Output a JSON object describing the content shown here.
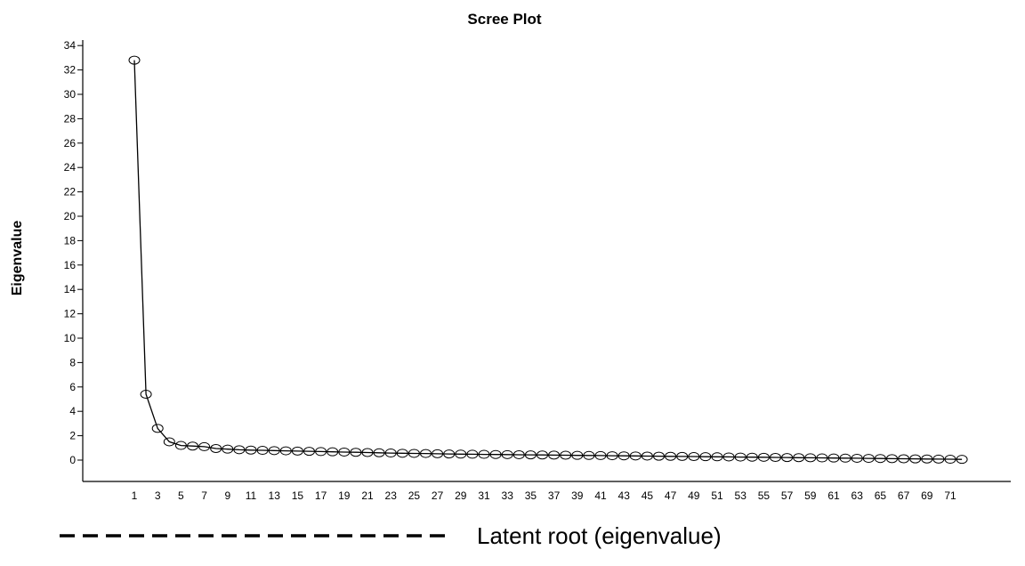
{
  "chart_data": {
    "type": "line",
    "title": "Scree Plot",
    "xlabel": "",
    "ylabel": "Eigenvalue",
    "x": [
      1,
      2,
      3,
      4,
      5,
      6,
      7,
      8,
      9,
      10,
      11,
      12,
      13,
      14,
      15,
      16,
      17,
      18,
      19,
      20,
      21,
      22,
      23,
      24,
      25,
      26,
      27,
      28,
      29,
      30,
      31,
      32,
      33,
      34,
      35,
      36,
      37,
      38,
      39,
      40,
      41,
      42,
      43,
      44,
      45,
      46,
      47,
      48,
      49,
      50,
      51,
      52,
      53,
      54,
      55,
      56,
      57,
      58,
      59,
      60,
      61,
      62,
      63,
      64,
      65,
      66,
      67,
      68,
      69,
      70,
      71,
      72
    ],
    "series": [
      {
        "values": [
          32.8,
          5.4,
          2.6,
          1.5,
          1.2,
          1.15,
          1.1,
          0.95,
          0.9,
          0.85,
          0.82,
          0.8,
          0.78,
          0.76,
          0.74,
          0.72,
          0.7,
          0.68,
          0.66,
          0.64,
          0.62,
          0.6,
          0.58,
          0.56,
          0.55,
          0.54,
          0.52,
          0.5,
          0.49,
          0.48,
          0.47,
          0.46,
          0.45,
          0.44,
          0.43,
          0.42,
          0.41,
          0.4,
          0.39,
          0.38,
          0.37,
          0.36,
          0.35,
          0.34,
          0.33,
          0.32,
          0.31,
          0.3,
          0.29,
          0.28,
          0.27,
          0.26,
          0.25,
          0.24,
          0.23,
          0.22,
          0.21,
          0.2,
          0.19,
          0.18,
          0.17,
          0.16,
          0.15,
          0.14,
          0.13,
          0.12,
          0.11,
          0.1,
          0.09,
          0.08,
          0.07,
          0.06
        ]
      }
    ],
    "xtick_labels": [
      1,
      3,
      5,
      7,
      9,
      11,
      13,
      15,
      17,
      19,
      21,
      23,
      25,
      27,
      29,
      31,
      33,
      35,
      37,
      39,
      41,
      43,
      45,
      47,
      49,
      51,
      53,
      55,
      57,
      59,
      61,
      63,
      65,
      67,
      69,
      71
    ],
    "yticks": [
      0,
      2,
      4,
      6,
      8,
      10,
      12,
      14,
      16,
      18,
      20,
      22,
      24,
      26,
      28,
      30,
      32,
      34
    ],
    "ylim": [
      -2,
      35
    ],
    "xlim": [
      0,
      73
    ],
    "grid": false,
    "legend": {
      "label": "Latent root (eigenvalue)",
      "line_style": "dashed",
      "placement": "bottom"
    }
  }
}
